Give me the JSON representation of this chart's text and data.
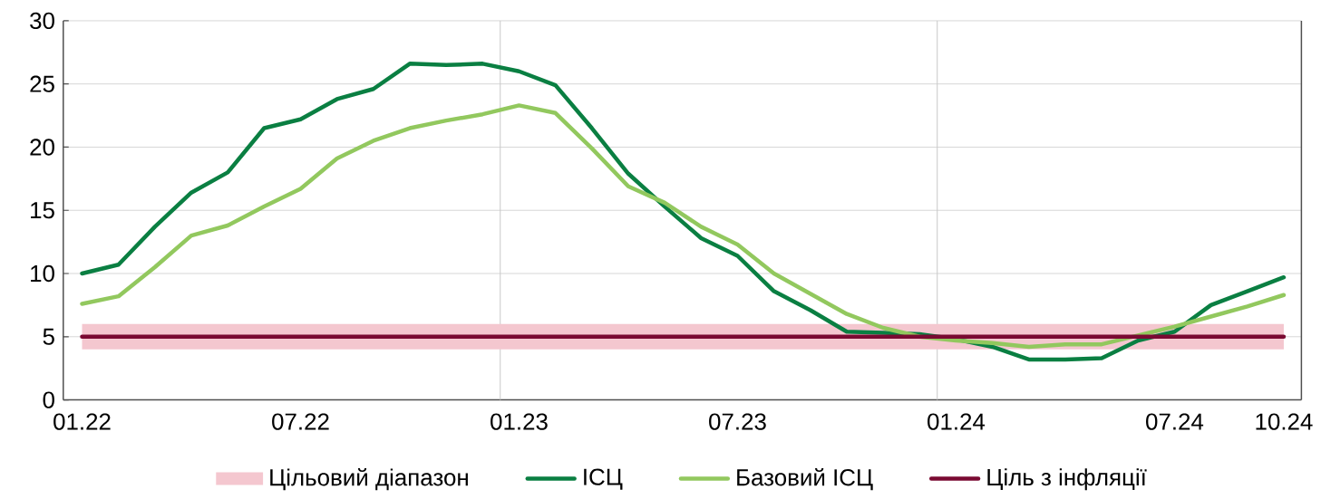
{
  "chart_data": {
    "type": "line",
    "x": [
      "2022-01",
      "2022-02",
      "2022-03",
      "2022-04",
      "2022-05",
      "2022-06",
      "2022-07",
      "2022-08",
      "2022-09",
      "2022-10",
      "2022-11",
      "2022-12",
      "2023-01",
      "2023-02",
      "2023-03",
      "2023-04",
      "2023-05",
      "2023-06",
      "2023-07",
      "2023-08",
      "2023-09",
      "2023-10",
      "2023-11",
      "2023-12",
      "2024-01",
      "2024-02",
      "2024-03",
      "2024-04",
      "2024-05",
      "2024-06",
      "2024-07",
      "2024-08",
      "2024-09",
      "2024-10"
    ],
    "series": [
      {
        "name": "ІСЦ",
        "color": "#0a7f42",
        "values": [
          10.0,
          10.7,
          13.7,
          16.4,
          18.0,
          21.5,
          22.2,
          23.8,
          24.6,
          26.6,
          26.5,
          26.6,
          26.0,
          24.9,
          21.5,
          17.9,
          15.3,
          12.8,
          11.4,
          8.6,
          7.1,
          5.4,
          5.3,
          5.2,
          4.8,
          4.2,
          3.2,
          3.2,
          3.3,
          4.7,
          5.4,
          7.5,
          8.6,
          9.7
        ]
      },
      {
        "name": "Базовий ІСЦ",
        "color": "#92c85e",
        "values": [
          7.6,
          8.2,
          10.5,
          13.0,
          13.8,
          15.3,
          16.7,
          19.1,
          20.5,
          21.5,
          22.1,
          22.6,
          23.3,
          22.7,
          19.9,
          16.9,
          15.6,
          13.7,
          12.3,
          10.0,
          8.4,
          6.8,
          5.7,
          5.0,
          4.7,
          4.5,
          4.2,
          4.4,
          4.4,
          5.1,
          5.8,
          6.6,
          7.4,
          8.3
        ]
      },
      {
        "name": "Ціль з інфляції",
        "color": "#7a0a32",
        "values": [
          5,
          5,
          5,
          5,
          5,
          5,
          5,
          5,
          5,
          5,
          5,
          5,
          5,
          5,
          5,
          5,
          5,
          5,
          5,
          5,
          5,
          5,
          5,
          5,
          5,
          5,
          5,
          5,
          5,
          5,
          5,
          5,
          5,
          5
        ]
      }
    ],
    "xlim": [
      "2021-12-16",
      "2024-10-16"
    ],
    "xticks": [
      {
        "value": "2022-01",
        "label": "01.22"
      },
      {
        "value": "2022-07",
        "label": "07.22"
      },
      {
        "value": "2023-01",
        "label": "01.23"
      },
      {
        "value": "2023-07",
        "label": "07.23"
      },
      {
        "value": "2024-01",
        "label": "01.24"
      },
      {
        "value": "2024-07",
        "label": "07.24"
      },
      {
        "value": "2024-10",
        "label": "10.24"
      }
    ],
    "ylim": [
      0,
      30
    ],
    "yticks": [
      0,
      5,
      10,
      15,
      20,
      25,
      30
    ],
    "bands": [
      {
        "axis": "y",
        "from": 4,
        "to": 6,
        "label": "Цільовий діапазон",
        "color": "#f4c7cf"
      }
    ],
    "ref_lines": [
      {
        "axis": "x",
        "value": "2022-12-16",
        "color": "#c8c8c8"
      },
      {
        "axis": "x",
        "value": "2023-12-16",
        "color": "#c8c8c8"
      }
    ],
    "grid": "y",
    "legend": "bottom",
    "marker": "none",
    "line_style": "solid"
  }
}
